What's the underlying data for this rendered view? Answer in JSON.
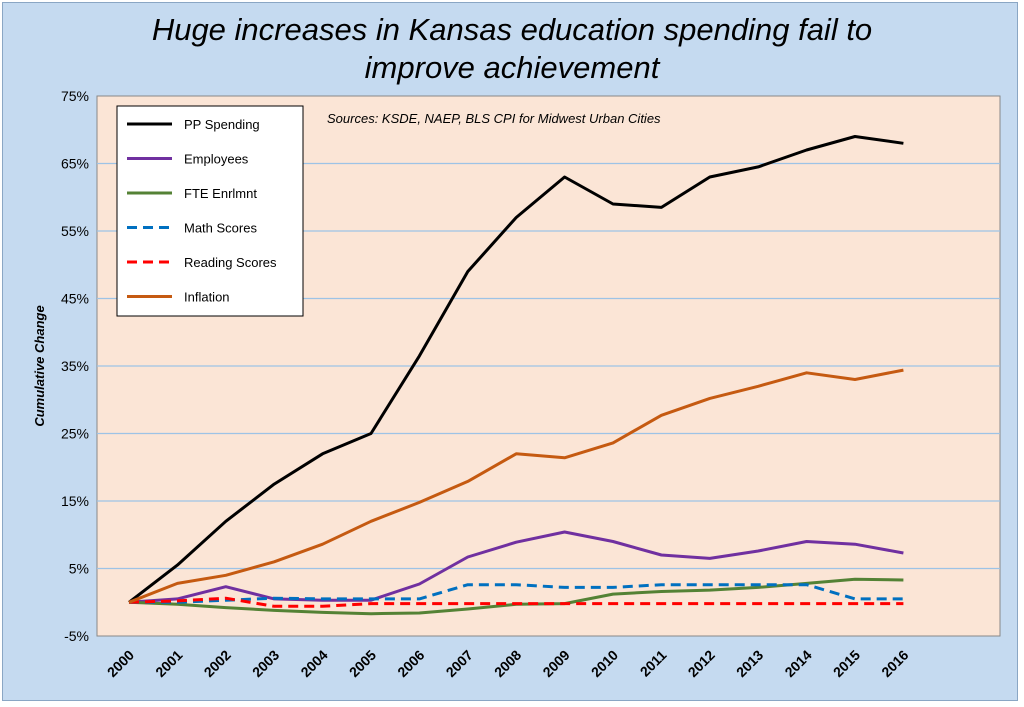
{
  "chart_data": {
    "type": "line",
    "title_lines": [
      "Huge increases in Kansas education spending fail to",
      "improve achievement"
    ],
    "ylabel": "Cumulative Change",
    "annotation": "Sources: KSDE, NAEP, BLS CPI for Midwest Urban Cities",
    "ylim": [
      -5,
      75
    ],
    "yticks": [
      "-5%",
      "5%",
      "15%",
      "25%",
      "35%",
      "45%",
      "55%",
      "65%",
      "75%"
    ],
    "ytick_values": [
      -5,
      5,
      15,
      25,
      35,
      45,
      55,
      65,
      75
    ],
    "x": [
      "2000",
      "2001",
      "2002",
      "2003",
      "2004",
      "2005",
      "2006",
      "2007",
      "2008",
      "2009",
      "2010",
      "2011",
      "2012",
      "2013",
      "2014",
      "2015",
      "2016"
    ],
    "grid": true,
    "legend_position": "top-left",
    "background_color": "#fbe5d6",
    "series": [
      {
        "name": "PP Spending",
        "color": "#000000",
        "dashed": false,
        "values": [
          0,
          5.5,
          12,
          17.5,
          22,
          25,
          36.5,
          49,
          57,
          63,
          59,
          58.5,
          63,
          64.5,
          67,
          69,
          68
        ]
      },
      {
        "name": "Employees",
        "color": "#7030a0",
        "dashed": false,
        "values": [
          0,
          0.5,
          2.3,
          0.5,
          0.3,
          0.3,
          2.7,
          6.7,
          8.9,
          10.4,
          9,
          7,
          6.5,
          7.6,
          9,
          8.6,
          7.3
        ]
      },
      {
        "name": "FTE Enrlmnt",
        "color": "#548235",
        "dashed": false,
        "values": [
          0,
          -0.3,
          -0.8,
          -1.2,
          -1.5,
          -1.7,
          -1.6,
          -1,
          -0.3,
          -0.2,
          1.2,
          1.6,
          1.8,
          2.2,
          2.8,
          3.4,
          3.3
        ]
      },
      {
        "name": "Math Scores",
        "color": "#0070c0",
        "dashed": true,
        "values": [
          0,
          0,
          0.3,
          0.6,
          0.5,
          0.5,
          0.5,
          2.6,
          2.6,
          2.2,
          2.2,
          2.6,
          2.6,
          2.6,
          2.6,
          0.5,
          0.5
        ]
      },
      {
        "name": "Reading Scores",
        "color": "#ff0000",
        "dashed": true,
        "values": [
          0,
          0.2,
          0.6,
          -0.6,
          -0.6,
          -0.2,
          -0.2,
          -0.2,
          -0.2,
          -0.2,
          -0.2,
          -0.2,
          -0.2,
          -0.2,
          -0.2,
          -0.2,
          -0.2
        ]
      },
      {
        "name": "Inflation",
        "color": "#c55a11",
        "dashed": false,
        "values": [
          0,
          2.8,
          4,
          6,
          8.6,
          12,
          14.8,
          17.9,
          22,
          21.4,
          23.6,
          27.7,
          30.2,
          32,
          34,
          33,
          34.4
        ]
      }
    ]
  }
}
